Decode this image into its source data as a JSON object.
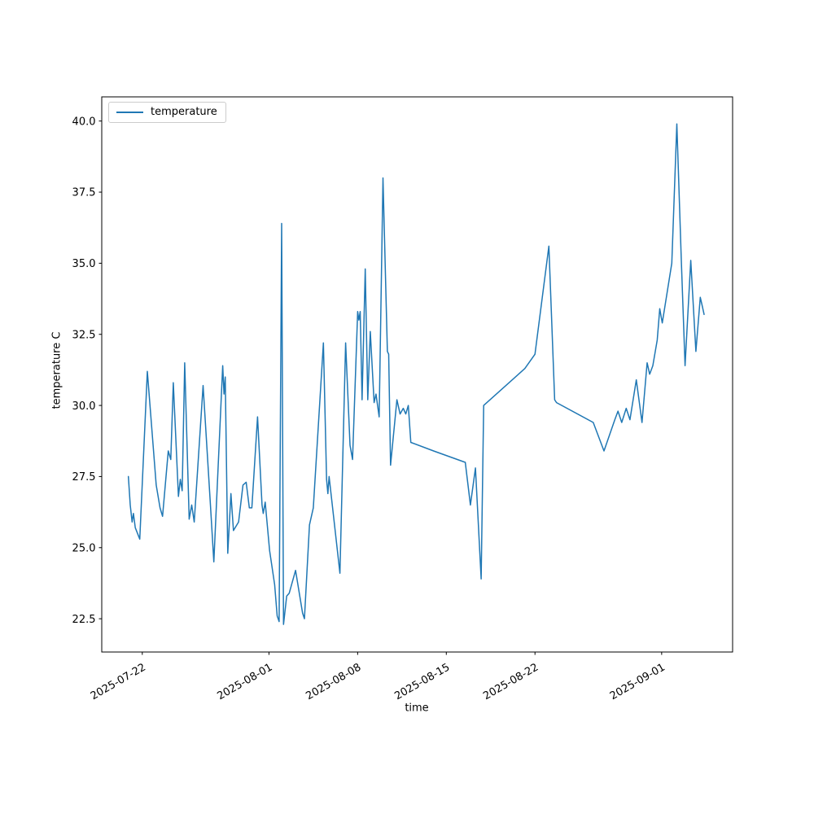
{
  "figure": {
    "xlabel": "time",
    "ylabel": "temperature C",
    "legend": {
      "label": "temperature"
    }
  },
  "chart_data": {
    "type": "line",
    "title": "",
    "xlabel": "time",
    "ylabel": "temperature C",
    "grid": false,
    "legend_position": "upper left",
    "series_name": "temperature",
    "line_color": "#1f77b4",
    "x_unit": "fractional days since 2025-07-22",
    "xlim": [
      -3.2,
      46.6
    ],
    "ylim": [
      21.33,
      40.85
    ],
    "y_ticks": [
      22.5,
      25.0,
      27.5,
      30.0,
      32.5,
      35.0,
      37.5,
      40.0
    ],
    "x_ticks": [
      {
        "label": "2025-07-22",
        "day": 0
      },
      {
        "label": "2025-08-01",
        "day": 10
      },
      {
        "label": "2025-08-08",
        "day": 17
      },
      {
        "label": "2025-08-15",
        "day": 24
      },
      {
        "label": "2025-08-22",
        "day": 31
      },
      {
        "label": "2025-09-01",
        "day": 41
      }
    ],
    "points": [
      [
        -1.1,
        27.5
      ],
      [
        -0.95,
        26.5
      ],
      [
        -0.8,
        25.9
      ],
      [
        -0.7,
        26.2
      ],
      [
        -0.55,
        25.7
      ],
      [
        -0.2,
        25.3
      ],
      [
        0.4,
        31.2
      ],
      [
        1.1,
        27.2
      ],
      [
        1.4,
        26.4
      ],
      [
        1.6,
        26.1
      ],
      [
        2.05,
        28.4
      ],
      [
        2.25,
        28.1
      ],
      [
        2.45,
        30.8
      ],
      [
        2.85,
        26.8
      ],
      [
        3.0,
        27.4
      ],
      [
        3.15,
        27.0
      ],
      [
        3.35,
        31.5
      ],
      [
        3.7,
        26.0
      ],
      [
        3.9,
        26.5
      ],
      [
        4.1,
        25.9
      ],
      [
        4.8,
        30.7
      ],
      [
        5.35,
        26.7
      ],
      [
        5.65,
        24.5
      ],
      [
        6.35,
        31.4
      ],
      [
        6.45,
        30.4
      ],
      [
        6.55,
        31.0
      ],
      [
        6.75,
        24.8
      ],
      [
        7.0,
        26.9
      ],
      [
        7.2,
        25.6
      ],
      [
        7.6,
        25.9
      ],
      [
        7.95,
        27.2
      ],
      [
        8.2,
        27.3
      ],
      [
        8.45,
        26.4
      ],
      [
        8.65,
        26.4
      ],
      [
        9.1,
        29.6
      ],
      [
        9.45,
        26.5
      ],
      [
        9.55,
        26.2
      ],
      [
        9.7,
        26.6
      ],
      [
        10.05,
        24.9
      ],
      [
        10.45,
        23.7
      ],
      [
        10.65,
        22.6
      ],
      [
        10.8,
        22.4
      ],
      [
        11.0,
        36.4
      ],
      [
        11.15,
        22.3
      ],
      [
        11.4,
        23.3
      ],
      [
        11.6,
        23.4
      ],
      [
        12.1,
        24.2
      ],
      [
        12.65,
        22.7
      ],
      [
        12.8,
        22.5
      ],
      [
        13.2,
        25.8
      ],
      [
        13.5,
        26.4
      ],
      [
        14.3,
        32.2
      ],
      [
        14.55,
        27.4
      ],
      [
        14.65,
        26.9
      ],
      [
        14.75,
        27.5
      ],
      [
        15.6,
        24.1
      ],
      [
        16.05,
        32.2
      ],
      [
        16.4,
        28.6
      ],
      [
        16.6,
        28.1
      ],
      [
        17.0,
        33.3
      ],
      [
        17.1,
        33.0
      ],
      [
        17.2,
        33.3
      ],
      [
        17.35,
        30.2
      ],
      [
        17.6,
        34.8
      ],
      [
        17.8,
        30.2
      ],
      [
        18.0,
        32.6
      ],
      [
        18.3,
        30.1
      ],
      [
        18.45,
        30.4
      ],
      [
        18.7,
        29.6
      ],
      [
        19.0,
        38.0
      ],
      [
        19.35,
        31.9
      ],
      [
        19.45,
        31.8
      ],
      [
        19.6,
        27.9
      ],
      [
        20.1,
        30.2
      ],
      [
        20.35,
        29.7
      ],
      [
        20.6,
        29.9
      ],
      [
        20.8,
        29.7
      ],
      [
        21.0,
        30.0
      ],
      [
        21.2,
        28.7
      ],
      [
        23.0,
        28.4
      ],
      [
        25.5,
        28.0
      ],
      [
        25.9,
        26.5
      ],
      [
        26.3,
        27.8
      ],
      [
        26.75,
        23.9
      ],
      [
        26.95,
        30.0
      ],
      [
        30.2,
        31.3
      ],
      [
        31.0,
        31.8
      ],
      [
        32.1,
        35.6
      ],
      [
        32.55,
        30.2
      ],
      [
        32.7,
        30.1
      ],
      [
        35.6,
        29.4
      ],
      [
        36.45,
        28.4
      ],
      [
        37.3,
        29.5
      ],
      [
        37.55,
        29.8
      ],
      [
        37.85,
        29.4
      ],
      [
        38.2,
        29.9
      ],
      [
        38.5,
        29.5
      ],
      [
        39.0,
        30.9
      ],
      [
        39.45,
        29.4
      ],
      [
        39.85,
        31.5
      ],
      [
        40.05,
        31.1
      ],
      [
        40.3,
        31.4
      ],
      [
        40.65,
        32.3
      ],
      [
        40.85,
        33.4
      ],
      [
        41.05,
        32.9
      ],
      [
        41.8,
        35.0
      ],
      [
        42.2,
        39.9
      ],
      [
        42.55,
        35.1
      ],
      [
        42.85,
        31.4
      ],
      [
        43.3,
        35.1
      ],
      [
        43.7,
        31.9
      ],
      [
        44.05,
        33.8
      ],
      [
        44.2,
        33.5
      ],
      [
        44.35,
        33.2
      ]
    ]
  }
}
